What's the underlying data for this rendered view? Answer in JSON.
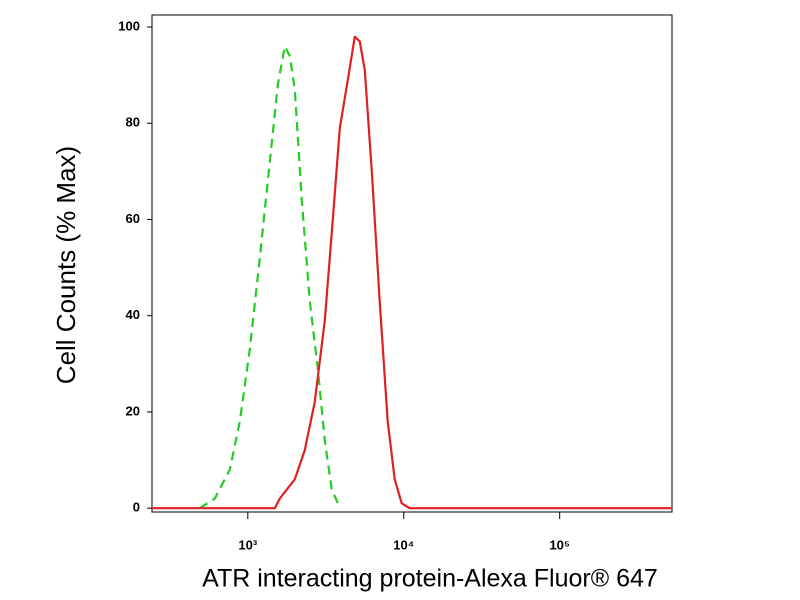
{
  "chart_data": {
    "type": "line",
    "xlabel": "ATR interacting protein-Alexa Fluor® 647",
    "ylabel": "Cell Counts (% Max)",
    "xscale": "log",
    "xlim": [
      243,
      525000
    ],
    "ylim": [
      -0.8,
      102.5
    ],
    "xticks": [
      {
        "value": 1000,
        "label": "10³"
      },
      {
        "value": 10000,
        "label": "10⁴"
      },
      {
        "value": 100000,
        "label": "10⁵"
      }
    ],
    "yticks": [
      0,
      20,
      40,
      60,
      80,
      100
    ],
    "series": [
      {
        "color": "#22cc22",
        "dash": true,
        "x": [
          492,
          614,
          767,
          889,
          1030,
          1194,
          1383,
          1557,
          1726,
          1858,
          2000,
          2218,
          2496,
          2810,
          3118,
          3452,
          3890
        ],
        "values": [
          0,
          2,
          8,
          18,
          33,
          52,
          72,
          88,
          96,
          94,
          87,
          64,
          43,
          29,
          14,
          4,
          0
        ]
      },
      {
        "color": "#e02020",
        "dash": false,
        "x": [
          243,
          1489,
          1604,
          2000,
          2318,
          2685,
          3118,
          3510,
          3890,
          4374,
          4853,
          5224,
          5623,
          6237,
          7015,
          7891,
          8753,
          9706,
          10915,
          525000
        ],
        "values": [
          0,
          0,
          2,
          6,
          12,
          22,
          39,
          60,
          79,
          89,
          98,
          97,
          91,
          70,
          43,
          18,
          6,
          1,
          0,
          0
        ]
      }
    ]
  }
}
